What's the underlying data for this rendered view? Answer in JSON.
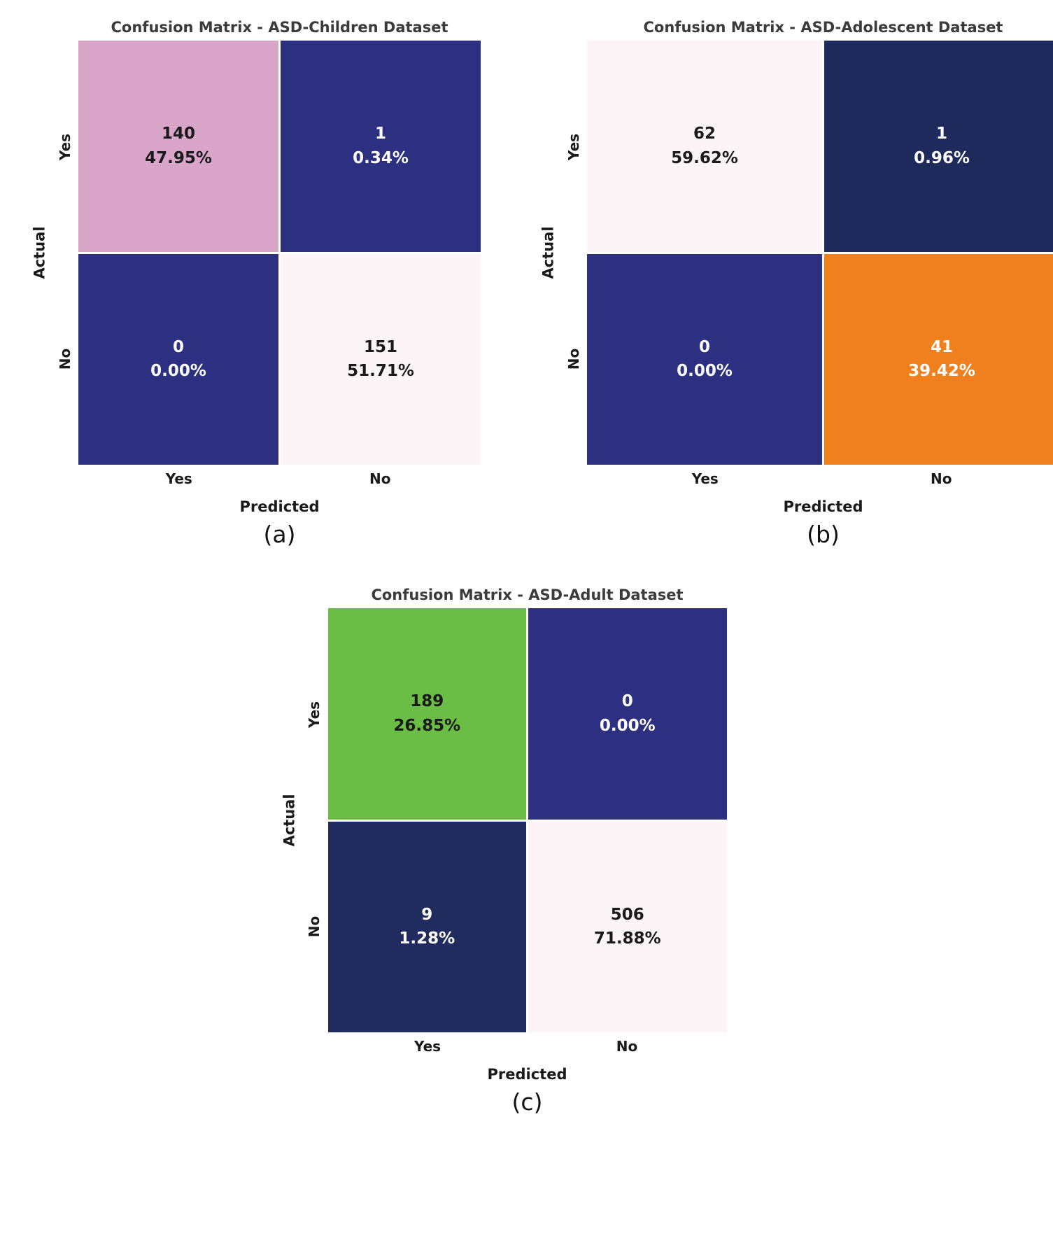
{
  "chart_data": [
    {
      "type": "heatmap",
      "title": "Confusion Matrix - ASD-Children Dataset",
      "xlabel": "Predicted",
      "ylabel": "Actual",
      "x_ticklabels": [
        "Yes",
        "No"
      ],
      "y_ticklabels": [
        "Yes",
        "No"
      ],
      "caption": "(a)",
      "cells": [
        {
          "actual": "Yes",
          "predicted": "Yes",
          "count": 140,
          "percent": "47.95%",
          "bg": "#d9a5c9",
          "fg": "#1a1a1a"
        },
        {
          "actual": "Yes",
          "predicted": "No",
          "count": 1,
          "percent": "0.34%",
          "bg": "#2d3081",
          "fg": "#ffffff"
        },
        {
          "actual": "No",
          "predicted": "Yes",
          "count": 0,
          "percent": "0.00%",
          "bg": "#2d3081",
          "fg": "#ffffff"
        },
        {
          "actual": "No",
          "predicted": "No",
          "count": 151,
          "percent": "51.71%",
          "bg": "#fdf4f7",
          "fg": "#1a1a1a"
        }
      ]
    },
    {
      "type": "heatmap",
      "title": "Confusion Matrix - ASD-Adolescent Dataset",
      "xlabel": "Predicted",
      "ylabel": "Actual",
      "x_ticklabels": [
        "Yes",
        "No"
      ],
      "y_ticklabels": [
        "Yes",
        "No"
      ],
      "caption": "(b)",
      "cells": [
        {
          "actual": "Yes",
          "predicted": "Yes",
          "count": 62,
          "percent": "59.62%",
          "bg": "#fdf4f7",
          "fg": "#1a1a1a"
        },
        {
          "actual": "Yes",
          "predicted": "No",
          "count": 1,
          "percent": "0.96%",
          "bg": "#1f2a5c",
          "fg": "#ffffff"
        },
        {
          "actual": "No",
          "predicted": "Yes",
          "count": 0,
          "percent": "0.00%",
          "bg": "#2d3081",
          "fg": "#ffffff"
        },
        {
          "actual": "No",
          "predicted": "No",
          "count": 41,
          "percent": "39.42%",
          "bg": "#f0801e",
          "fg": "#ffffff"
        }
      ]
    },
    {
      "type": "heatmap",
      "title": "Confusion Matrix - ASD-Adult Dataset",
      "xlabel": "Predicted",
      "ylabel": "Actual",
      "x_ticklabels": [
        "Yes",
        "No"
      ],
      "y_ticklabels": [
        "Yes",
        "No"
      ],
      "caption": "(c)",
      "cells": [
        {
          "actual": "Yes",
          "predicted": "Yes",
          "count": 189,
          "percent": "26.85%",
          "bg": "#6abd45",
          "fg": "#1a1a1a"
        },
        {
          "actual": "Yes",
          "predicted": "No",
          "count": 0,
          "percent": "0.00%",
          "bg": "#2d3081",
          "fg": "#ffffff"
        },
        {
          "actual": "No",
          "predicted": "Yes",
          "count": 9,
          "percent": "1.28%",
          "bg": "#202b5e",
          "fg": "#ffffff"
        },
        {
          "actual": "No",
          "predicted": "No",
          "count": 506,
          "percent": "71.88%",
          "bg": "#fdf4f7",
          "fg": "#1a1a1a"
        }
      ]
    }
  ]
}
